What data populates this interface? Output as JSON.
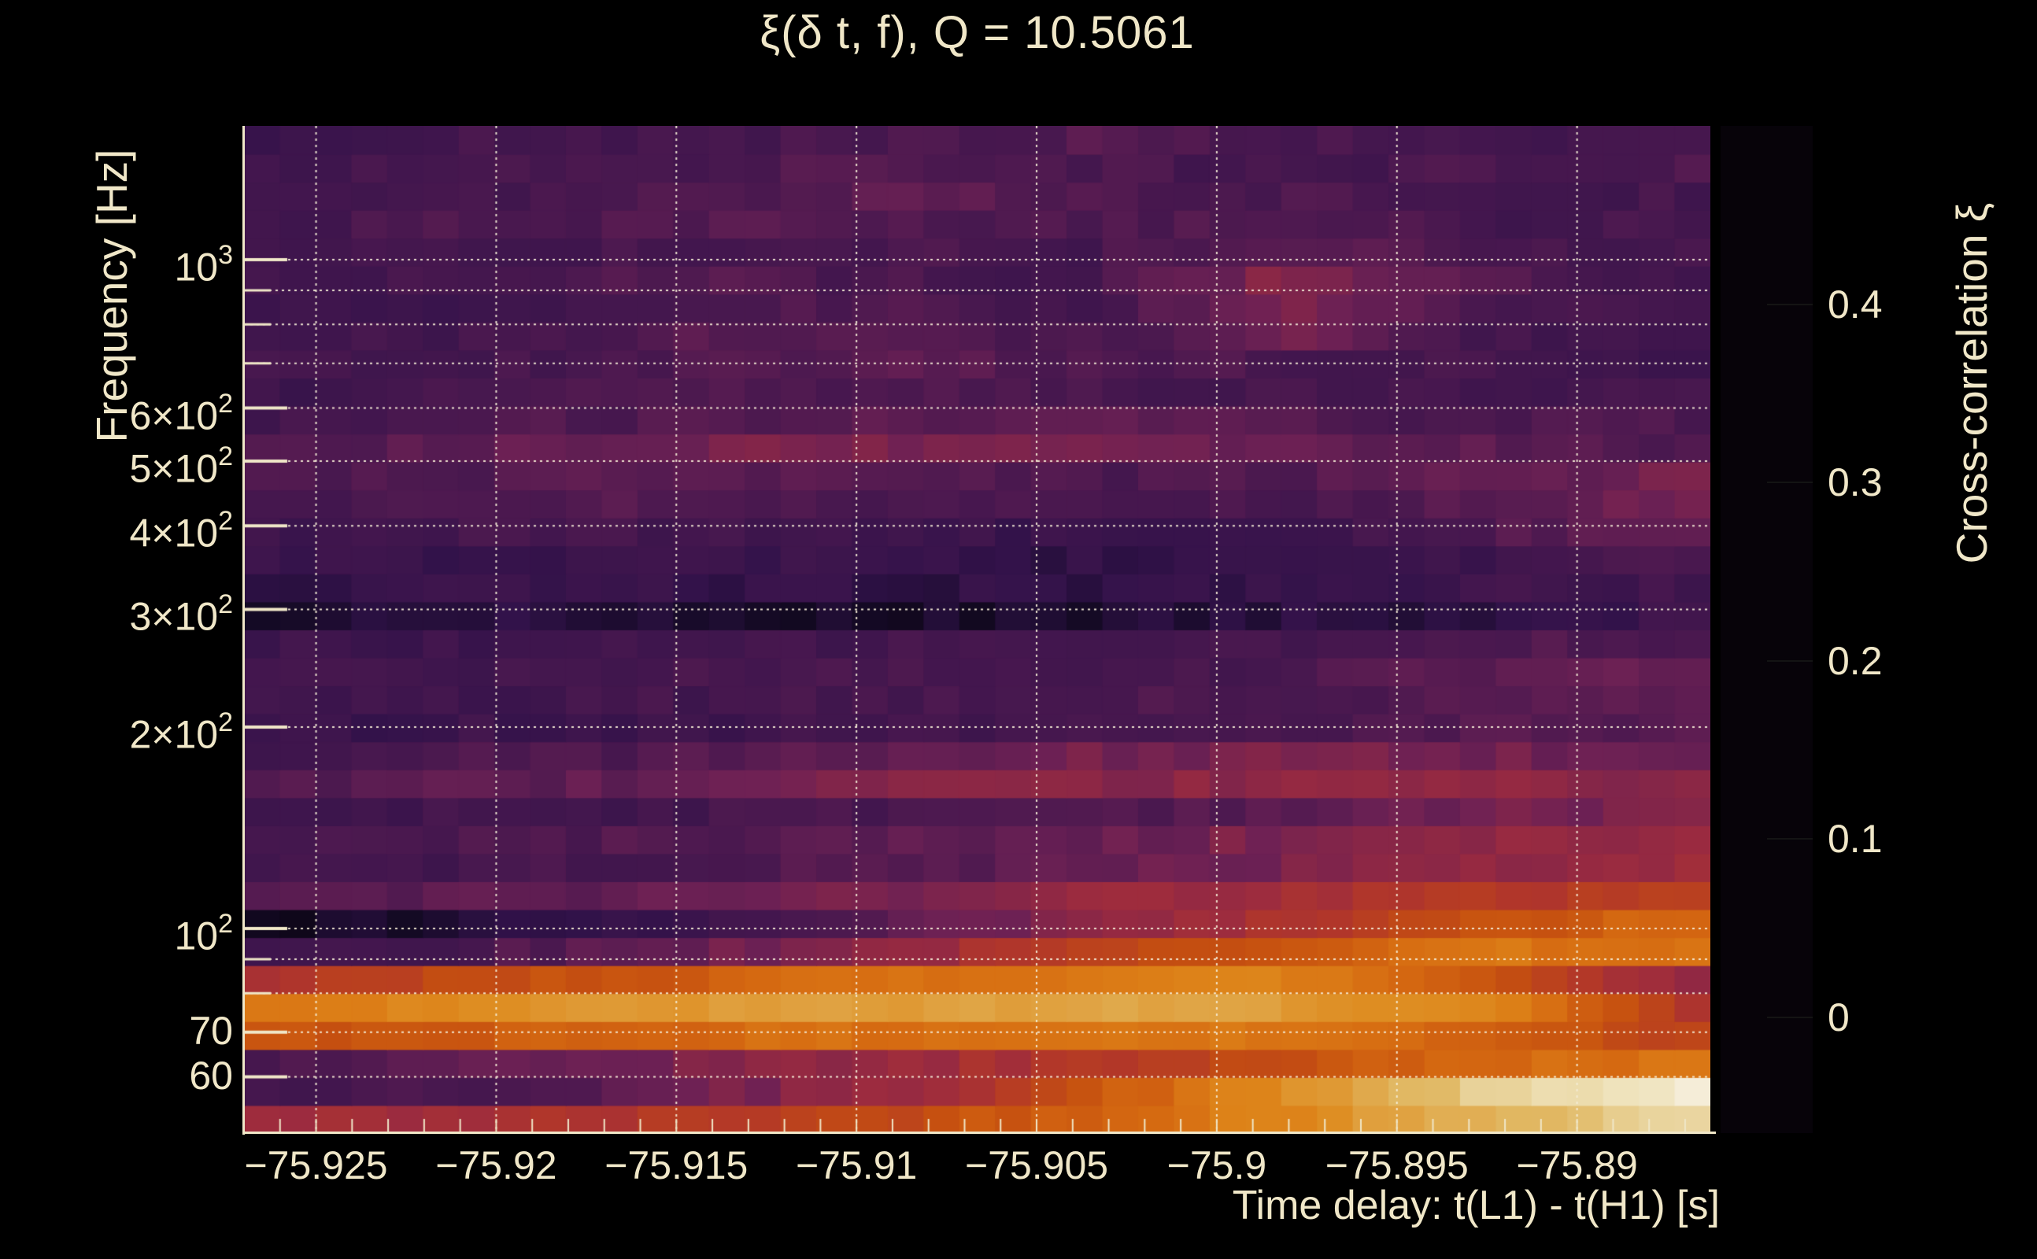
{
  "title": "ξ(δ t, f), Q = 10.5061",
  "colors": {
    "background": "#000000",
    "text": "#f0e7c8",
    "grid": "#f2ead6",
    "axis": "#f0e7c8"
  },
  "axes": {
    "x": {
      "label": "Time delay: t(L1) - t(H1) [s]",
      "range_s": [
        -75.927,
        -75.8863
      ],
      "minor_tick_step_s": 0.001,
      "ticks": [
        {
          "v": -75.925,
          "label": "−75.925"
        },
        {
          "v": -75.92,
          "label": "−75.92"
        },
        {
          "v": -75.915,
          "label": "−75.915"
        },
        {
          "v": -75.91,
          "label": "−75.91"
        },
        {
          "v": -75.905,
          "label": "−75.905"
        },
        {
          "v": -75.9,
          "label": "−75.9"
        },
        {
          "v": -75.895,
          "label": "−75.895"
        },
        {
          "v": -75.89,
          "label": "−75.89"
        }
      ]
    },
    "y": {
      "label": "Frequency [Hz]",
      "scale": "log",
      "range_hz": [
        49.4,
        1585
      ],
      "major_ticks": [
        {
          "hz": 1000,
          "mant": "10",
          "exp": "3"
        },
        {
          "hz": 600,
          "mant": "6×10",
          "exp": "2"
        },
        {
          "hz": 500,
          "mant": "5×10",
          "exp": "2"
        },
        {
          "hz": 400,
          "mant": "4×10",
          "exp": "2"
        },
        {
          "hz": 300,
          "mant": "3×10",
          "exp": "2"
        },
        {
          "hz": 200,
          "mant": "2×10",
          "exp": "2"
        },
        {
          "hz": 100,
          "mant": "10",
          "exp": "2"
        },
        {
          "hz": 70,
          "mant": "70",
          "exp": ""
        },
        {
          "hz": 60,
          "mant": "60",
          "exp": ""
        }
      ],
      "minor_ticks_hz": [
        900,
        800,
        700,
        90,
        80
      ]
    }
  },
  "colorbar": {
    "label": "Cross-correlation ξ",
    "range": [
      -0.065,
      0.5
    ],
    "tick_values": [
      0.4,
      0.3,
      0.2,
      0.1,
      0
    ],
    "tick_labels": [
      "0.4",
      "0.3",
      "0.2",
      "0.1",
      "0"
    ],
    "colormap": [
      [
        -0.065,
        "#070309"
      ],
      [
        -0.03,
        "#150a26"
      ],
      [
        0.0,
        "#32124a"
      ],
      [
        0.04,
        "#49184f"
      ],
      [
        0.08,
        "#6e2154"
      ],
      [
        0.1,
        "#872647"
      ],
      [
        0.13,
        "#9c2b3f"
      ],
      [
        0.16,
        "#b23729"
      ],
      [
        0.2,
        "#c54f10"
      ],
      [
        0.24,
        "#d56911"
      ],
      [
        0.28,
        "#dd8118"
      ],
      [
        0.3,
        "#de8d22"
      ],
      [
        0.34,
        "#e0a343"
      ],
      [
        0.38,
        "#e1b863"
      ],
      [
        0.42,
        "#e7cf92"
      ],
      [
        0.46,
        "#efe2bb"
      ],
      [
        0.5,
        "#f9f6ee"
      ]
    ]
  },
  "chart_data": {
    "type": "heatmap",
    "title": "ξ(δ t, f), Q = 10.5061",
    "xlabel": "Time delay: t(L1) - t(H1) [s]",
    "ylabel": "Frequency [Hz]",
    "zlabel": "Cross-correlation ξ",
    "x_range_s": [
      -75.927,
      -75.8863
    ],
    "n_cols": 41,
    "y_scale": "log",
    "y_range_hz": [
      49.4,
      1585
    ],
    "n_rows": 36,
    "z_range": [
      -0.065,
      0.5
    ],
    "note": "xi sampled at 8 evenly spaced time-delay positions per log-spaced frequency row; rows ordered bottom (lowest frequency) to top",
    "rows": [
      {
        "f_lo": 50.0,
        "f_hi": 55.0,
        "xi": [
          0.13,
          0.14,
          0.16,
          0.19,
          0.23,
          0.29,
          0.37,
          0.44
        ]
      },
      {
        "f_lo": 55.0,
        "f_hi": 60.6,
        "xi": [
          0.03,
          0.04,
          0.07,
          0.12,
          0.2,
          0.3,
          0.42,
          0.48
        ]
      },
      {
        "f_lo": 60.6,
        "f_hi": 66.7,
        "xi": [
          0.04,
          0.06,
          0.09,
          0.12,
          0.16,
          0.2,
          0.24,
          0.26
        ]
      },
      {
        "f_lo": 66.7,
        "f_hi": 73.4,
        "xi": [
          0.2,
          0.22,
          0.24,
          0.25,
          0.26,
          0.26,
          0.23,
          0.18
        ]
      },
      {
        "f_lo": 73.4,
        "f_hi": 80.8,
        "xi": [
          0.27,
          0.3,
          0.32,
          0.33,
          0.34,
          0.33,
          0.28,
          0.15
        ]
      },
      {
        "f_lo": 80.8,
        "f_hi": 88.9,
        "xi": [
          0.15,
          0.19,
          0.22,
          0.25,
          0.27,
          0.28,
          0.21,
          0.12
        ]
      },
      {
        "f_lo": 88.9,
        "f_hi": 97.9,
        "xi": [
          0.02,
          0.04,
          0.07,
          0.11,
          0.17,
          0.22,
          0.26,
          0.25
        ]
      },
      {
        "f_lo": 97.9,
        "f_hi": 107.7,
        "xi": [
          -0.04,
          -0.02,
          0.01,
          0.05,
          0.1,
          0.15,
          0.2,
          0.24
        ]
      },
      {
        "f_lo": 107.7,
        "f_hi": 118.6,
        "xi": [
          0.05,
          0.06,
          0.07,
          0.09,
          0.12,
          0.14,
          0.16,
          0.18
        ]
      },
      {
        "f_lo": 118.6,
        "f_hi": 130.5,
        "xi": [
          0.03,
          0.03,
          0.04,
          0.05,
          0.07,
          0.09,
          0.11,
          0.13
        ]
      },
      {
        "f_lo": 130.5,
        "f_hi": 143.7,
        "xi": [
          0.04,
          0.04,
          0.05,
          0.06,
          0.07,
          0.09,
          0.11,
          0.12
        ]
      },
      {
        "f_lo": 143.7,
        "f_hi": 158.1,
        "xi": [
          0.02,
          0.03,
          0.03,
          0.04,
          0.05,
          0.06,
          0.08,
          0.1
        ]
      },
      {
        "f_lo": 158.1,
        "f_hi": 174.0,
        "xi": [
          0.05,
          0.06,
          0.07,
          0.09,
          0.1,
          0.11,
          0.11,
          0.1
        ]
      },
      {
        "f_lo": 174.0,
        "f_hi": 191.6,
        "xi": [
          0.03,
          0.04,
          0.05,
          0.06,
          0.08,
          0.09,
          0.08,
          0.07
        ]
      },
      {
        "f_lo": 191.6,
        "f_hi": 210.9,
        "xi": [
          0.01,
          0.02,
          0.02,
          0.03,
          0.03,
          0.04,
          0.05,
          0.05
        ]
      },
      {
        "f_lo": 210.9,
        "f_hi": 232.1,
        "xi": [
          0.02,
          0.02,
          0.03,
          0.03,
          0.04,
          0.04,
          0.05,
          0.06
        ]
      },
      {
        "f_lo": 232.1,
        "f_hi": 255.5,
        "xi": [
          0.03,
          0.03,
          0.04,
          0.04,
          0.03,
          0.04,
          0.06,
          0.07
        ]
      },
      {
        "f_lo": 255.5,
        "f_hi": 281.2,
        "xi": [
          0.02,
          0.02,
          0.02,
          0.03,
          0.03,
          0.03,
          0.04,
          0.05
        ]
      },
      {
        "f_lo": 281.2,
        "f_hi": 309.5,
        "xi": [
          -0.02,
          -0.01,
          -0.02,
          -0.03,
          -0.02,
          -0.01,
          0.0,
          0.02
        ]
      },
      {
        "f_lo": 309.5,
        "f_hi": 340.7,
        "xi": [
          0.0,
          0.01,
          0.01,
          0.0,
          0.0,
          0.01,
          0.02,
          0.03
        ]
      },
      {
        "f_lo": 340.7,
        "f_hi": 375.0,
        "xi": [
          0.01,
          0.01,
          0.02,
          0.01,
          0.0,
          0.01,
          0.02,
          0.04
        ]
      },
      {
        "f_lo": 375.0,
        "f_hi": 412.7,
        "xi": [
          0.02,
          0.03,
          0.03,
          0.02,
          0.01,
          0.02,
          0.05,
          0.07
        ]
      },
      {
        "f_lo": 412.7,
        "f_hi": 454.3,
        "xi": [
          0.03,
          0.04,
          0.05,
          0.04,
          0.03,
          0.04,
          0.06,
          0.08
        ]
      },
      {
        "f_lo": 454.3,
        "f_hi": 500.0,
        "xi": [
          0.04,
          0.05,
          0.06,
          0.05,
          0.04,
          0.05,
          0.07,
          0.08
        ]
      },
      {
        "f_lo": 500.0,
        "f_hi": 550.3,
        "xi": [
          0.05,
          0.06,
          0.08,
          0.09,
          0.09,
          0.07,
          0.06,
          0.05
        ]
      },
      {
        "f_lo": 550.3,
        "f_hi": 605.7,
        "xi": [
          0.03,
          0.04,
          0.05,
          0.06,
          0.06,
          0.05,
          0.04,
          0.04
        ]
      },
      {
        "f_lo": 605.7,
        "f_hi": 666.7,
        "xi": [
          0.02,
          0.03,
          0.04,
          0.05,
          0.04,
          0.03,
          0.03,
          0.03
        ]
      },
      {
        "f_lo": 666.7,
        "f_hi": 733.8,
        "xi": [
          0.03,
          0.03,
          0.04,
          0.06,
          0.05,
          0.04,
          0.03,
          0.02
        ]
      },
      {
        "f_lo": 733.8,
        "f_hi": 807.6,
        "xi": [
          0.02,
          0.03,
          0.05,
          0.06,
          0.04,
          0.08,
          0.03,
          0.02
        ]
      },
      {
        "f_lo": 807.6,
        "f_hi": 888.9,
        "xi": [
          0.02,
          0.02,
          0.04,
          0.05,
          0.03,
          0.09,
          0.04,
          0.02
        ]
      },
      {
        "f_lo": 888.9,
        "f_hi": 978.3,
        "xi": [
          0.03,
          0.03,
          0.05,
          0.04,
          0.03,
          0.1,
          0.05,
          0.03
        ]
      },
      {
        "f_lo": 978.3,
        "f_hi": 1076.7,
        "xi": [
          0.02,
          0.03,
          0.04,
          0.04,
          0.03,
          0.07,
          0.04,
          0.03
        ]
      },
      {
        "f_lo": 1076.7,
        "f_hi": 1185.1,
        "xi": [
          0.03,
          0.04,
          0.05,
          0.05,
          0.04,
          0.05,
          0.03,
          0.04
        ]
      },
      {
        "f_lo": 1185.1,
        "f_hi": 1304.3,
        "xi": [
          0.02,
          0.03,
          0.04,
          0.06,
          0.05,
          0.04,
          0.03,
          0.03
        ]
      },
      {
        "f_lo": 1304.3,
        "f_hi": 1435.6,
        "xi": [
          0.03,
          0.03,
          0.04,
          0.05,
          0.04,
          0.03,
          0.04,
          0.04
        ]
      },
      {
        "f_lo": 1435.6,
        "f_hi": 1585.0,
        "xi": [
          0.02,
          0.03,
          0.03,
          0.04,
          0.05,
          0.04,
          0.03,
          0.03
        ]
      }
    ]
  }
}
